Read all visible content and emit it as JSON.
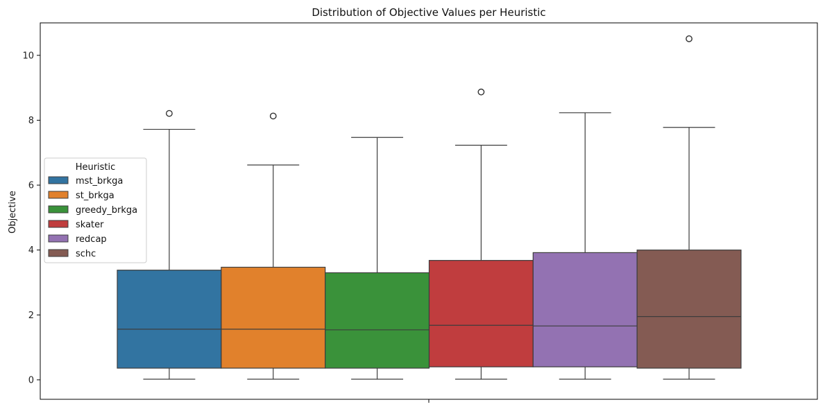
{
  "chart_data": {
    "type": "box",
    "title": "Distribution of Objective Values per Heuristic",
    "xlabel": "",
    "ylabel": "Objective",
    "ylim": [
      -0.6,
      11.0
    ],
    "yticks": [
      0,
      2,
      4,
      6,
      8,
      10
    ],
    "grid": false,
    "legend": {
      "title": "Heuristic",
      "placement": "center-left"
    },
    "series": [
      {
        "name": "mst_brkga",
        "color": "#3274a1",
        "min": 0.02,
        "q1": 0.36,
        "median": 1.56,
        "q3": 3.38,
        "max": 7.72,
        "outliers": [
          8.21
        ]
      },
      {
        "name": "st_brkga",
        "color": "#e1812c",
        "min": 0.02,
        "q1": 0.36,
        "median": 1.56,
        "q3": 3.47,
        "max": 6.62,
        "outliers": [
          8.13
        ]
      },
      {
        "name": "greedy_brkga",
        "color": "#3a923a",
        "min": 0.02,
        "q1": 0.36,
        "median": 1.54,
        "q3": 3.3,
        "max": 7.47,
        "outliers": []
      },
      {
        "name": "skater",
        "color": "#c03d3e",
        "min": 0.02,
        "q1": 0.4,
        "median": 1.68,
        "q3": 3.68,
        "max": 7.23,
        "outliers": [
          8.87
        ]
      },
      {
        "name": "redcap",
        "color": "#9372b2",
        "min": 0.02,
        "q1": 0.4,
        "median": 1.66,
        "q3": 3.92,
        "max": 8.23,
        "outliers": []
      },
      {
        "name": "schc",
        "color": "#845b53",
        "min": 0.02,
        "q1": 0.36,
        "median": 1.95,
        "q3": 4.0,
        "max": 7.78,
        "outliers": [
          10.51
        ]
      }
    ]
  }
}
